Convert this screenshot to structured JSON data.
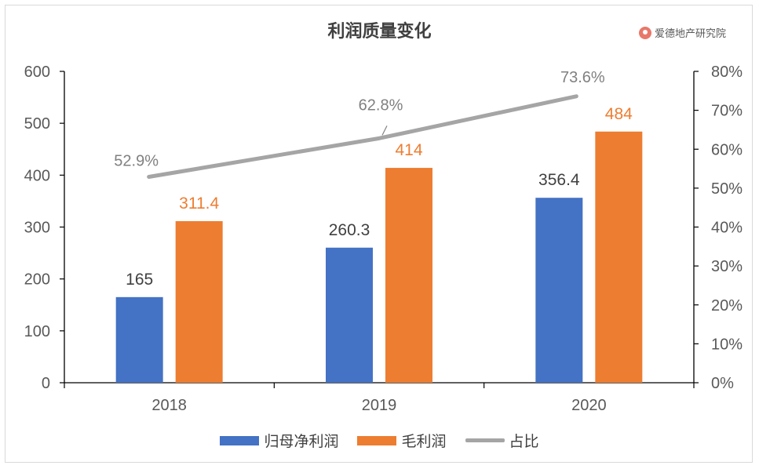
{
  "chart_data": {
    "type": "bar",
    "title": "利润质量变化",
    "categories": [
      "2018",
      "2019",
      "2020"
    ],
    "series": [
      {
        "name": "归母净利润",
        "values": [
          165,
          260.3,
          356.4
        ],
        "labels": [
          "165",
          "260.3",
          "356.4"
        ],
        "color": "#4472C4",
        "axis": "left",
        "kind": "bar"
      },
      {
        "name": "毛利润",
        "values": [
          311.4,
          414,
          484
        ],
        "labels": [
          "311.4",
          "414",
          "484"
        ],
        "color": "#ED7D31",
        "axis": "left",
        "kind": "bar"
      },
      {
        "name": "占比",
        "values": [
          52.9,
          62.8,
          73.6
        ],
        "labels": [
          "52.9%",
          "62.8%",
          "73.6%"
        ],
        "color": "#A5A5A5",
        "axis": "right",
        "kind": "line"
      }
    ],
    "ylim_left": [
      0,
      600
    ],
    "yticks_left": [
      "0",
      "100",
      "200",
      "300",
      "400",
      "500",
      "600"
    ],
    "ylim_right": [
      0,
      80
    ],
    "yticks_right": [
      "0%",
      "10%",
      "20%",
      "30%",
      "40%",
      "50%",
      "60%",
      "70%",
      "80%"
    ],
    "grid": false,
    "legend": "bottom"
  },
  "brand": {
    "text": "爱德地产研究院",
    "icon": "brand-logo-icon"
  }
}
